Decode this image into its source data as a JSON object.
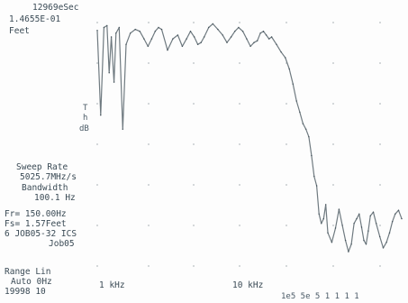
{
  "header": {
    "line1": "12969eSec",
    "line2": "1.4655E-01",
    "line3": "Feet"
  },
  "y_unit_stack": [
    "T",
    "h",
    "dB"
  ],
  "sweep": {
    "rate_label": "Sweep Rate",
    "rate_value": "5025.7MHz/s",
    "bw_label": "Bandwidth",
    "bw_value": "100.1 Hz"
  },
  "params": {
    "fr": "Fr= 150.00Hz",
    "fs": "Fs= 1.57Feet",
    "job": "6 JOB05-32 ICS",
    "job_name": "Job05"
  },
  "range": {
    "label": "Range Lin",
    "auto": "Auto 0Hz",
    "value": "19998 10"
  },
  "axis": {
    "tick1": "1 kHz",
    "tick2": "10 kHz",
    "footer": "1e5 5e  5 1 1 1 1"
  },
  "chart_data": {
    "type": "line",
    "x_scale": "log",
    "xlabel": "",
    "ylabel": "",
    "title": "",
    "grid": true,
    "x_ticks": [
      "1 kHz",
      "10 kHz"
    ],
    "series": [
      {
        "x": [
          700,
          740,
          780,
          820,
          850,
          880,
          920,
          950,
          1000,
          1060,
          1120,
          1200,
          1300,
          1400,
          1500,
          1600,
          1700,
          1800,
          1900,
          2000,
          2200,
          2400,
          2600,
          2800,
          3000,
          3200,
          3400,
          3600,
          3800,
          4000,
          4300,
          4600,
          5000,
          5400,
          5800,
          6200,
          6600,
          7000,
          7500,
          8000,
          8500,
          9000,
          9500,
          10000,
          10500,
          11000,
          11500,
          12000,
          13000,
          14000,
          15000,
          16000,
          17000,
          18000,
          19000,
          20000,
          21000,
          22000,
          23000,
          24000,
          25000,
          26000,
          27000,
          28000,
          29000,
          30000,
          32000,
          34000,
          36000,
          38000,
          40000,
          42000,
          44000,
          46000,
          48000,
          50000,
          52000,
          54000,
          56000,
          58000,
          60000,
          63000,
          66000,
          70000,
          74000,
          78000,
          82000,
          86000,
          90000,
          95000,
          100000
        ],
        "y": [
          -5,
          -95,
          -2,
          0,
          -50,
          -12,
          -60,
          -8,
          -2,
          -110,
          -20,
          -8,
          -4,
          -6,
          -14,
          -22,
          -14,
          -6,
          -2,
          -4,
          -26,
          -14,
          -10,
          -22,
          -14,
          -6,
          -12,
          -20,
          -18,
          -12,
          -2,
          2,
          -4,
          -10,
          -18,
          -12,
          -6,
          -2,
          -6,
          -14,
          -22,
          -18,
          -16,
          -8,
          -6,
          -10,
          -14,
          -12,
          -20,
          -28,
          -34,
          -46,
          -62,
          -80,
          -92,
          -104,
          -110,
          -118,
          -138,
          -160,
          -170,
          -200,
          -210,
          -205,
          -190,
          -220,
          -230,
          -215,
          -195,
          -212,
          -228,
          -240,
          -232,
          -210,
          -205,
          -200,
          -214,
          -228,
          -232,
          -218,
          -202,
          -198,
          -210,
          -224,
          -236,
          -230,
          -220,
          -208,
          -200,
          -196,
          -205
        ]
      }
    ],
    "ylim": [
      -260,
      10
    ],
    "xlim": [
      700,
      100000
    ]
  }
}
